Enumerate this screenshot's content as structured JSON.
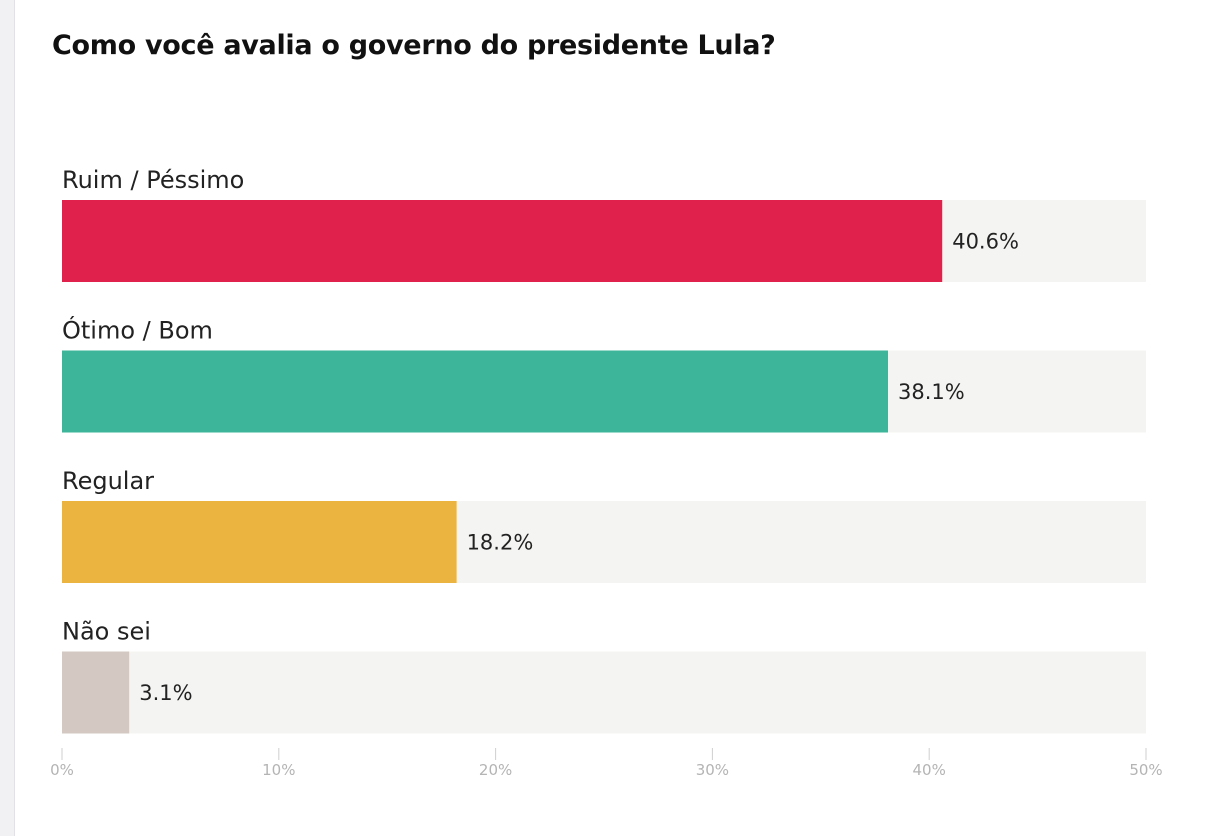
{
  "chart_data": {
    "type": "bar",
    "orientation": "horizontal",
    "title": "Como você avalia o governo do presidente Lula?",
    "categories": [
      "Ruim / Péssimo",
      "Ótimo / Bom",
      "Regular",
      "Não sei"
    ],
    "values": [
      40.6,
      38.1,
      18.2,
      3.1
    ],
    "value_labels": [
      "40.6%",
      "38.1%",
      "18.2%",
      "3.1%"
    ],
    "colors": [
      "#e0214b",
      "#3db59a",
      "#ebb33f",
      "#d4c8c3"
    ],
    "track_color": "#f4f4f2",
    "xlim": [
      0,
      50
    ],
    "x_ticks": [
      0,
      10,
      20,
      30,
      40,
      50
    ],
    "x_tick_labels": [
      "0%",
      "10%",
      "20%",
      "30%",
      "40%",
      "50%"
    ],
    "grid": false,
    "legend": "none"
  }
}
